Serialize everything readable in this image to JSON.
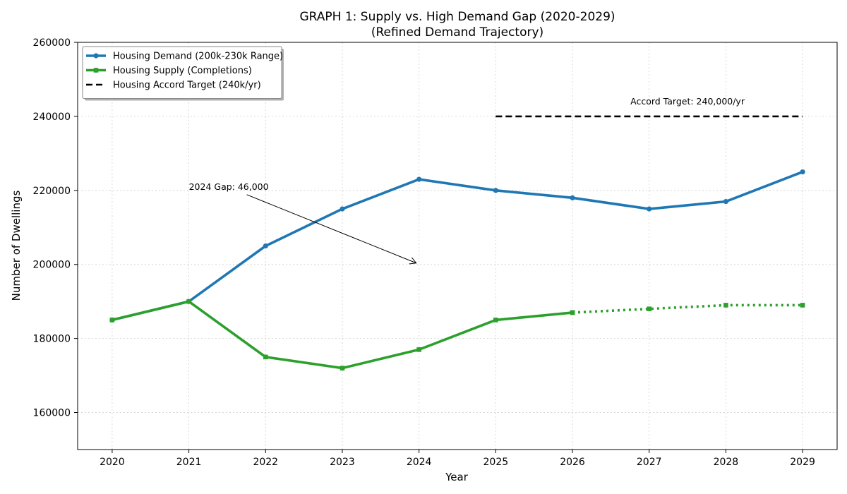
{
  "chart_data": {
    "type": "line",
    "title": "GRAPH 1: Supply vs. High Demand Gap (2020-2029)",
    "subtitle": "(Refined Demand Trajectory)",
    "xlabel": "Year",
    "ylabel": "Number of Dwellings",
    "x": [
      2020,
      2021,
      2022,
      2023,
      2024,
      2025,
      2026,
      2027,
      2028,
      2029
    ],
    "xlim": [
      2019.55,
      2029.45
    ],
    "ylim": [
      150000,
      260000
    ],
    "yticks": [
      160000,
      180000,
      200000,
      220000,
      240000,
      260000
    ],
    "grid": true,
    "legend_position": "top-left",
    "series": [
      {
        "name": "Housing Demand (200k-230k Range)",
        "color": "#1f77b4",
        "marker": "circle",
        "line_style": "solid",
        "values": [
          185000,
          190000,
          205000,
          215000,
          223000,
          220000,
          218000,
          215000,
          217000,
          225000
        ]
      },
      {
        "name": "Housing Supply (Completions)",
        "color": "#2ca02c",
        "marker": "square",
        "line_style": "solid",
        "values": [
          185000,
          190000,
          175000,
          172000,
          177000,
          185000,
          187000,
          null,
          null,
          null
        ]
      },
      {
        "name": "",
        "color": "#2ca02c",
        "marker": "square",
        "line_style": "dotted",
        "values": [
          null,
          null,
          null,
          null,
          null,
          null,
          187000,
          188000,
          189000,
          189000
        ]
      },
      {
        "name": "Housing Accord Target (240k/yr)",
        "color": "#000000",
        "marker": "none",
        "line_style": "dashed",
        "values": [
          null,
          null,
          null,
          null,
          null,
          240000,
          240000,
          240000,
          240000,
          240000
        ]
      }
    ],
    "annotations": [
      {
        "text": "Accord Target: 240,000/yr",
        "x": 2027.5,
        "y": 243000
      },
      {
        "text": "2024 Gap: 46,000",
        "x": 2021.0,
        "y": 220000,
        "arrow_to": [
          2024.0,
          200000
        ]
      }
    ]
  }
}
